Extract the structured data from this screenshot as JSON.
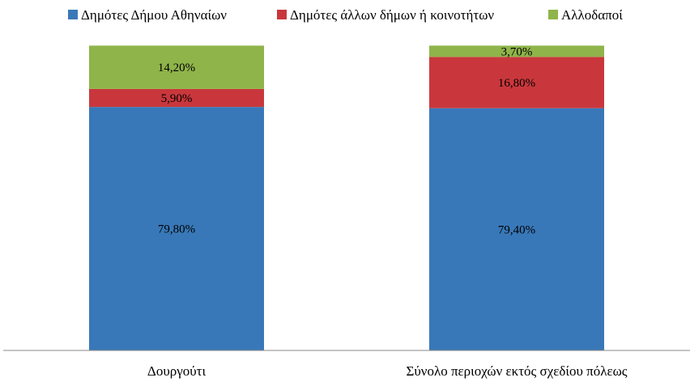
{
  "chart_data": {
    "type": "bar",
    "stacked": true,
    "categories": [
      "Δουργούτι",
      "Σύνολο περιοχών εκτός σχεδίου πόλεως"
    ],
    "series": [
      {
        "name": "Δημότες Δήμου Αθηναίων",
        "values": [
          79.8,
          79.4
        ],
        "labels": [
          "79,80%",
          "79,40%"
        ],
        "color": "#3878b8"
      },
      {
        "name": "Δημότες άλλων δήμων ή κοινοτήτων",
        "values": [
          5.9,
          16.8
        ],
        "labels": [
          "5,90%",
          "16,80%"
        ],
        "color": "#c9373c"
      },
      {
        "name": "Αλλοδαποί",
        "values": [
          14.2,
          3.7
        ],
        "labels": [
          "14,20%",
          "3,70%"
        ],
        "color": "#8fb44a"
      }
    ],
    "ylim": [
      0,
      100
    ],
    "legend_position": "top",
    "grid": false
  }
}
